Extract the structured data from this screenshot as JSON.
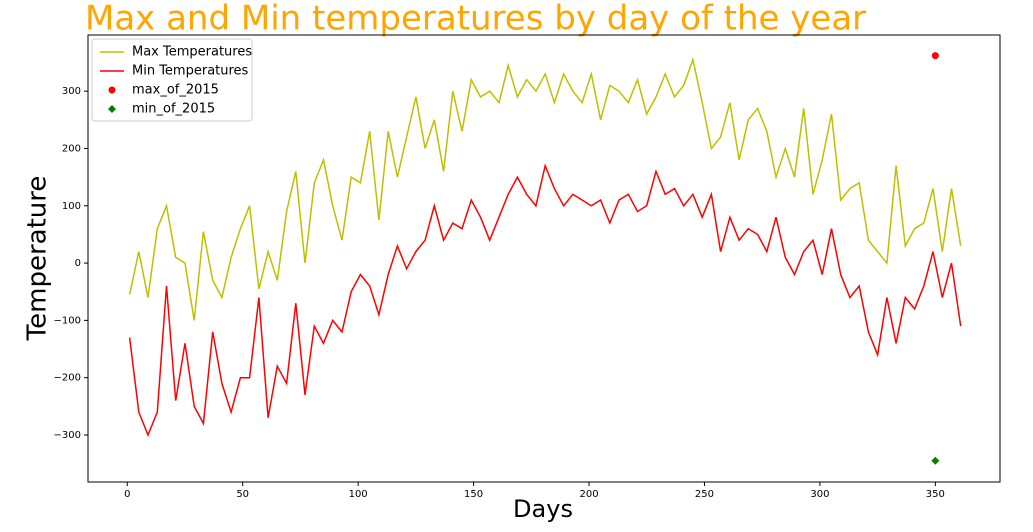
{
  "chart_data": {
    "type": "line",
    "title": "Max and Min temperatures by day of the year",
    "x_label": "Days",
    "y_label": "Temperature",
    "x": [
      1,
      5,
      9,
      13,
      17,
      21,
      25,
      29,
      33,
      37,
      41,
      45,
      49,
      53,
      57,
      61,
      65,
      69,
      73,
      77,
      81,
      85,
      89,
      93,
      97,
      101,
      105,
      109,
      113,
      117,
      121,
      125,
      129,
      133,
      137,
      141,
      145,
      149,
      153,
      157,
      161,
      165,
      169,
      173,
      177,
      181,
      185,
      189,
      193,
      197,
      201,
      205,
      209,
      213,
      217,
      221,
      225,
      229,
      233,
      237,
      241,
      245,
      249,
      253,
      257,
      261,
      265,
      269,
      273,
      277,
      281,
      285,
      289,
      293,
      297,
      301,
      305,
      309,
      313,
      317,
      321,
      325,
      329,
      333,
      337,
      341,
      345,
      349,
      353,
      357,
      361
    ],
    "series": [
      {
        "name": "Max Temperatures",
        "type": "line",
        "color": "#bfbf00",
        "values": [
          -55,
          20,
          -60,
          60,
          100,
          10,
          0,
          -100,
          55,
          -30,
          -60,
          10,
          60,
          100,
          -45,
          20,
          -30,
          90,
          160,
          0,
          140,
          180,
          100,
          40,
          150,
          140,
          230,
          75,
          230,
          150,
          220,
          290,
          200,
          250,
          160,
          300,
          230,
          320,
          290,
          300,
          280,
          345,
          290,
          320,
          300,
          330,
          280,
          330,
          300,
          280,
          330,
          250,
          310,
          300,
          280,
          320,
          260,
          290,
          330,
          290,
          310,
          355,
          280,
          200,
          220,
          280,
          180,
          250,
          270,
          230,
          150,
          200,
          150,
          270,
          120,
          180,
          260,
          110,
          130,
          140,
          40,
          20,
          0,
          170,
          30,
          60,
          70,
          130,
          20,
          130,
          30
        ]
      },
      {
        "name": "Min Temperatures",
        "type": "line",
        "color": "#ff0000",
        "values": [
          -130,
          -260,
          -300,
          -260,
          -40,
          -240,
          -140,
          -250,
          -280,
          -120,
          -210,
          -260,
          -200,
          -200,
          -60,
          -270,
          -180,
          -210,
          -70,
          -230,
          -110,
          -140,
          -100,
          -120,
          -50,
          -20,
          -40,
          -90,
          -20,
          30,
          -10,
          20,
          40,
          100,
          40,
          70,
          60,
          110,
          80,
          40,
          80,
          120,
          150,
          120,
          100,
          170,
          130,
          100,
          120,
          110,
          100,
          110,
          70,
          110,
          120,
          90,
          100,
          160,
          120,
          130,
          100,
          120,
          80,
          120,
          20,
          80,
          40,
          60,
          50,
          20,
          80,
          10,
          -20,
          20,
          40,
          -20,
          60,
          -20,
          -60,
          -40,
          -120,
          -160,
          -60,
          -140,
          -60,
          -80,
          -40,
          20,
          -60,
          0,
          -110
        ]
      },
      {
        "name": "max_of_2015",
        "type": "scatter",
        "marker": "circle",
        "color": "#ff0000",
        "x": [
          350
        ],
        "values": [
          362
        ]
      },
      {
        "name": "min_of_2015",
        "type": "scatter",
        "marker": "diamond",
        "color": "#008000",
        "x": [
          350
        ],
        "values": [
          -345
        ]
      }
    ],
    "xlim": [
      -17,
      378
    ],
    "ylim": [
      -382,
      398
    ],
    "xticks": [
      0,
      50,
      100,
      150,
      200,
      250,
      300,
      350
    ],
    "yticks": [
      {
        "value": -300,
        "label": "−300"
      },
      {
        "value": -200,
        "label": "−200"
      },
      {
        "value": -100,
        "label": "−100"
      },
      0,
      100,
      200,
      300
    ],
    "legend": "upper left",
    "title_color": "#ffa500"
  }
}
